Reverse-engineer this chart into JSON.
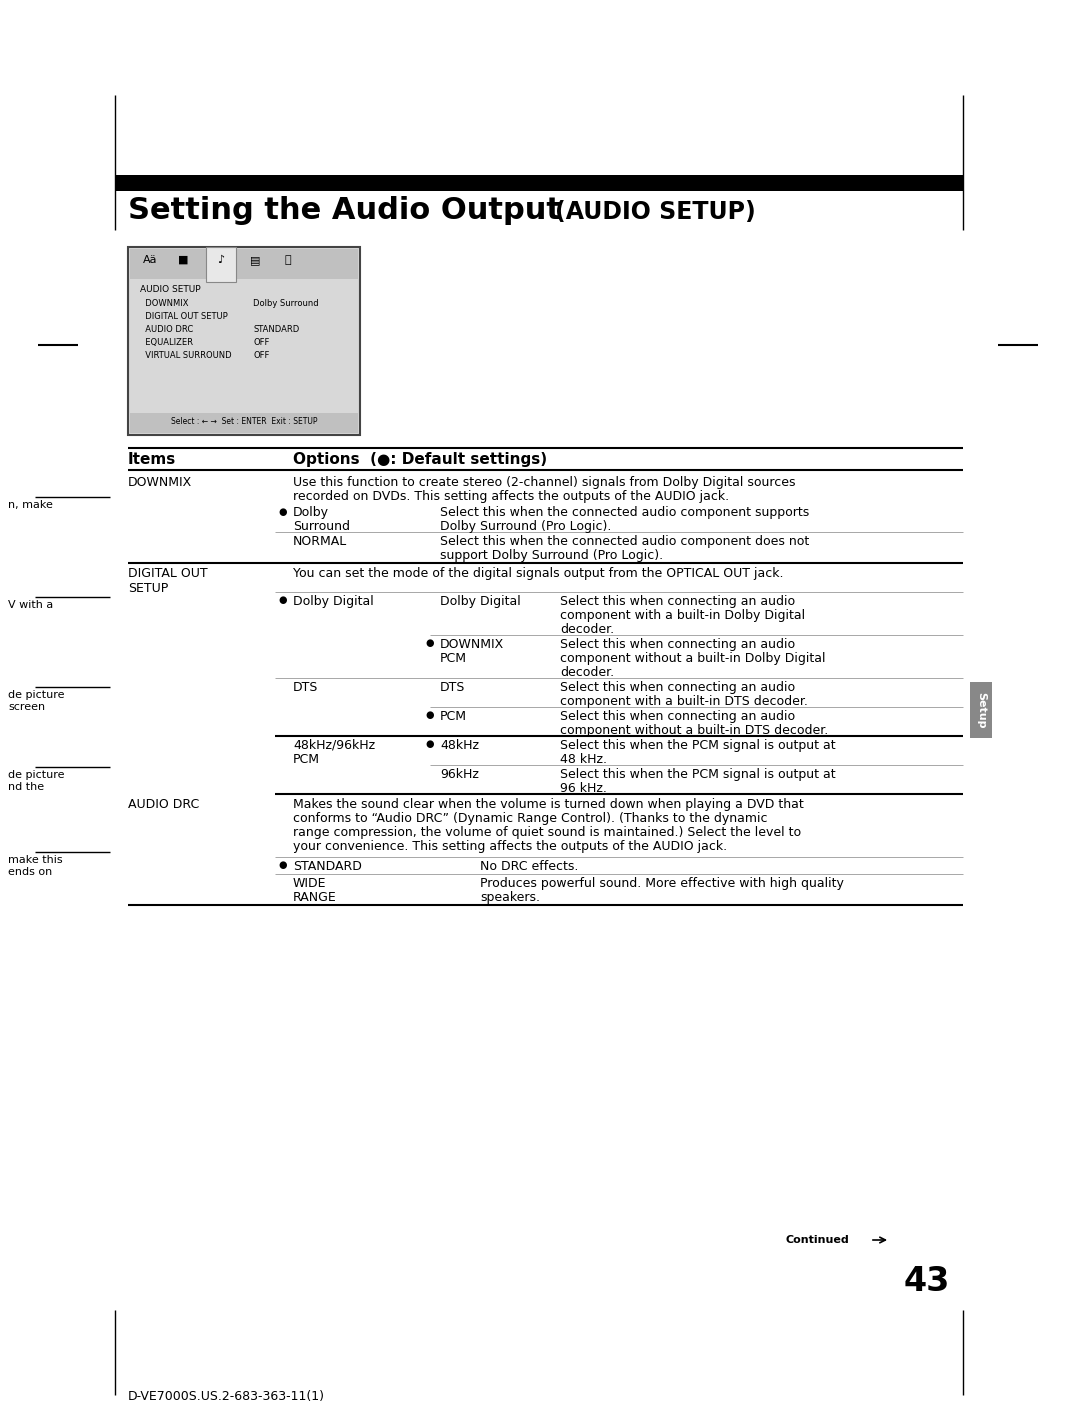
{
  "title_normal": "Setting the Audio Output ",
  "title_bold_suffix": "(AUDIO SETUP)",
  "page_number": "43",
  "footer_text": "D-VE7000S.US.2-683-363-11(1)",
  "continued_text": "Continued",
  "sidebar_label": "Setup",
  "bg_color": "#ffffff"
}
